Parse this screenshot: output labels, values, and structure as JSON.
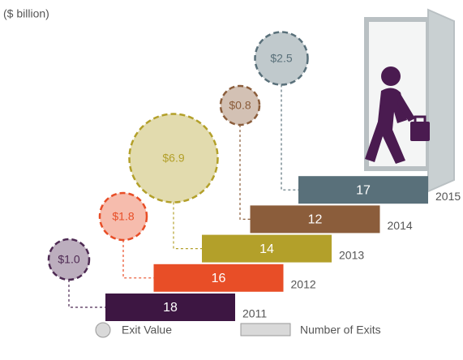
{
  "chart_data": {
    "type": "steps",
    "subtitle": "($ billion)",
    "categories": [
      "2011",
      "2012",
      "2013",
      "2014",
      "2015"
    ],
    "series": [
      {
        "name": "Number of Exits",
        "colors": [
          "#3d1642",
          "#e84e27",
          "#b3a02a",
          "#8b5d3b",
          "#59707a"
        ],
        "values": [
          18,
          16,
          14,
          12,
          17
        ]
      },
      {
        "name": "Exit Value",
        "colors": [
          "#4e2a53",
          "#e84e27",
          "#b3a02a",
          "#8b5d3b",
          "#59707a"
        ],
        "values": [
          1.0,
          1.8,
          6.9,
          0.8,
          2.5
        ],
        "value_labels": [
          "$1.0",
          "$1.8",
          "$6.9",
          "$0.8",
          "$2.5"
        ]
      }
    ]
  }
}
